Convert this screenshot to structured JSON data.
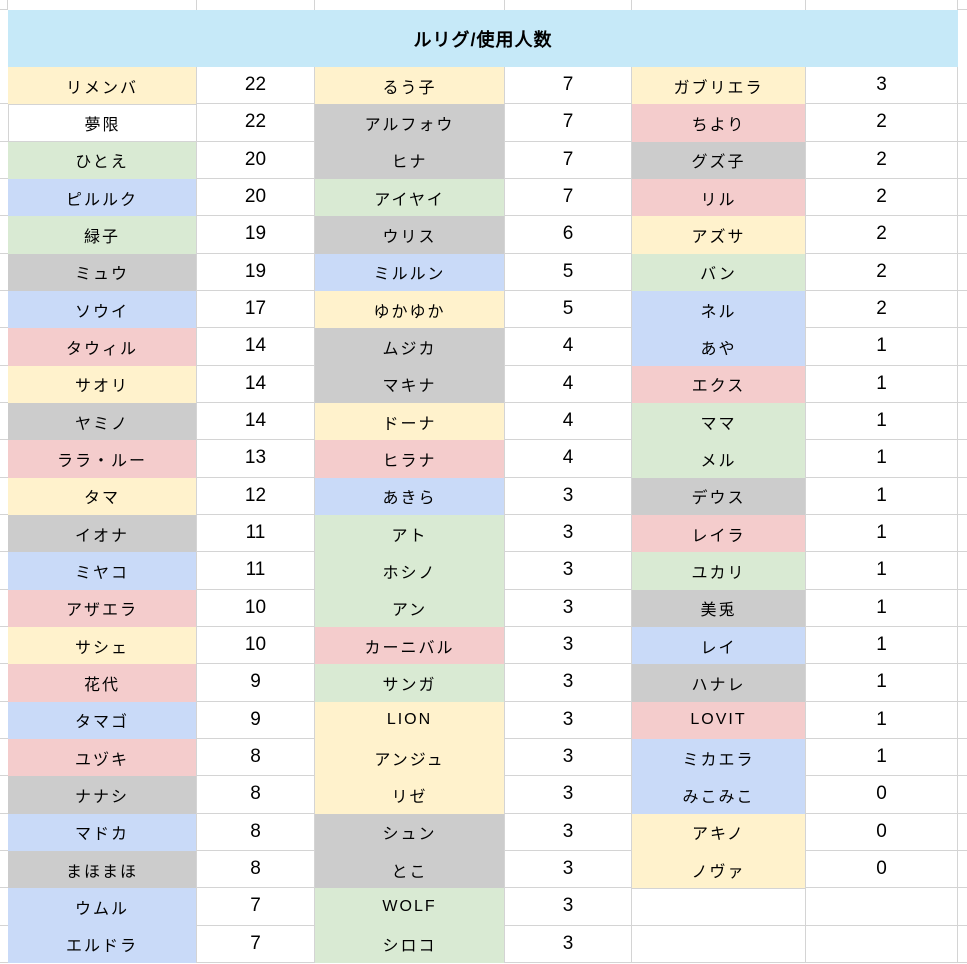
{
  "title": "ルリグ/使用人数",
  "colors": {
    "header": "#c6e9f8",
    "yellow": "#fff2cc",
    "blue": "#c9daf8",
    "green": "#d9ead3",
    "pink": "#f4cccc",
    "gray": "#cccccc",
    "white": "#ffffff",
    "grid": "#d4d4d4"
  },
  "groups": [
    {
      "entries": [
        {
          "label": "リメンバ",
          "count": "22",
          "color": "yellow"
        },
        {
          "label": "夢限",
          "count": "22",
          "color": "white"
        },
        {
          "label": "ひとえ",
          "count": "20",
          "color": "green"
        },
        {
          "label": "ピルルク",
          "count": "20",
          "color": "blue"
        },
        {
          "label": "緑子",
          "count": "19",
          "color": "green"
        },
        {
          "label": "ミュウ",
          "count": "19",
          "color": "gray"
        },
        {
          "label": "ソウイ",
          "count": "17",
          "color": "blue"
        },
        {
          "label": "タウィル",
          "count": "14",
          "color": "pink"
        },
        {
          "label": "サオリ",
          "count": "14",
          "color": "yellow"
        },
        {
          "label": "ヤミノ",
          "count": "14",
          "color": "gray"
        },
        {
          "label": "ララ・ルー",
          "count": "13",
          "color": "pink"
        },
        {
          "label": "タマ",
          "count": "12",
          "color": "yellow"
        },
        {
          "label": "イオナ",
          "count": "11",
          "color": "gray"
        },
        {
          "label": "ミヤコ",
          "count": "11",
          "color": "blue"
        },
        {
          "label": "アザエラ",
          "count": "10",
          "color": "pink"
        },
        {
          "label": "サシェ",
          "count": "10",
          "color": "yellow"
        },
        {
          "label": "花代",
          "count": "9",
          "color": "pink"
        },
        {
          "label": "タマゴ",
          "count": "9",
          "color": "blue"
        },
        {
          "label": "ユヅキ",
          "count": "8",
          "color": "pink"
        },
        {
          "label": "ナナシ",
          "count": "8",
          "color": "gray"
        },
        {
          "label": "マドカ",
          "count": "8",
          "color": "blue"
        },
        {
          "label": "まほまほ",
          "count": "8",
          "color": "gray"
        },
        {
          "label": "ウムル",
          "count": "7",
          "color": "blue"
        },
        {
          "label": "エルドラ",
          "count": "7",
          "color": "blue"
        }
      ]
    },
    {
      "entries": [
        {
          "label": "るう子",
          "count": "7",
          "color": "yellow"
        },
        {
          "label": "アルフォウ",
          "count": "7",
          "color": "gray"
        },
        {
          "label": "ヒナ",
          "count": "7",
          "color": "gray"
        },
        {
          "label": "アイヤイ",
          "count": "7",
          "color": "green"
        },
        {
          "label": "ウリス",
          "count": "6",
          "color": "gray"
        },
        {
          "label": "ミルルン",
          "count": "5",
          "color": "blue"
        },
        {
          "label": "ゆかゆか",
          "count": "5",
          "color": "yellow"
        },
        {
          "label": "ムジカ",
          "count": "4",
          "color": "gray"
        },
        {
          "label": "マキナ",
          "count": "4",
          "color": "gray"
        },
        {
          "label": "ドーナ",
          "count": "4",
          "color": "yellow"
        },
        {
          "label": "ヒラナ",
          "count": "4",
          "color": "pink"
        },
        {
          "label": "あきら",
          "count": "3",
          "color": "blue"
        },
        {
          "label": "アト",
          "count": "3",
          "color": "green"
        },
        {
          "label": "ホシノ",
          "count": "3",
          "color": "green"
        },
        {
          "label": "アン",
          "count": "3",
          "color": "green"
        },
        {
          "label": "カーニバル",
          "count": "3",
          "color": "pink"
        },
        {
          "label": "サンガ",
          "count": "3",
          "color": "green"
        },
        {
          "label": "LION",
          "count": "3",
          "color": "yellow"
        },
        {
          "label": "アンジュ",
          "count": "3",
          "color": "yellow"
        },
        {
          "label": "リゼ",
          "count": "3",
          "color": "yellow"
        },
        {
          "label": "シュン",
          "count": "3",
          "color": "gray"
        },
        {
          "label": "とこ",
          "count": "3",
          "color": "gray"
        },
        {
          "label": "WOLF",
          "count": "3",
          "color": "green"
        },
        {
          "label": "シロコ",
          "count": "3",
          "color": "green"
        }
      ]
    },
    {
      "entries": [
        {
          "label": "ガブリエラ",
          "count": "3",
          "color": "yellow"
        },
        {
          "label": "ちより",
          "count": "2",
          "color": "pink"
        },
        {
          "label": "グズ子",
          "count": "2",
          "color": "gray"
        },
        {
          "label": "リル",
          "count": "2",
          "color": "pink"
        },
        {
          "label": "アズサ",
          "count": "2",
          "color": "yellow"
        },
        {
          "label": "バン",
          "count": "2",
          "color": "green"
        },
        {
          "label": "ネル",
          "count": "2",
          "color": "blue"
        },
        {
          "label": "あや",
          "count": "1",
          "color": "blue"
        },
        {
          "label": "エクス",
          "count": "1",
          "color": "pink"
        },
        {
          "label": "ママ",
          "count": "1",
          "color": "green"
        },
        {
          "label": "メル",
          "count": "1",
          "color": "green"
        },
        {
          "label": "デウス",
          "count": "1",
          "color": "gray"
        },
        {
          "label": "レイラ",
          "count": "1",
          "color": "pink"
        },
        {
          "label": "ユカリ",
          "count": "1",
          "color": "green"
        },
        {
          "label": "美兎",
          "count": "1",
          "color": "gray"
        },
        {
          "label": "レイ",
          "count": "1",
          "color": "blue"
        },
        {
          "label": "ハナレ",
          "count": "1",
          "color": "gray"
        },
        {
          "label": "LOVIT",
          "count": "1",
          "color": "pink"
        },
        {
          "label": "ミカエラ",
          "count": "1",
          "color": "blue"
        },
        {
          "label": "みこみこ",
          "count": "0",
          "color": "blue"
        },
        {
          "label": "アキノ",
          "count": "0",
          "color": "yellow"
        },
        {
          "label": "ノヴァ",
          "count": "0",
          "color": "yellow"
        },
        {
          "label": "",
          "count": "",
          "color": "white"
        },
        {
          "label": "",
          "count": "",
          "color": "white"
        }
      ]
    }
  ]
}
